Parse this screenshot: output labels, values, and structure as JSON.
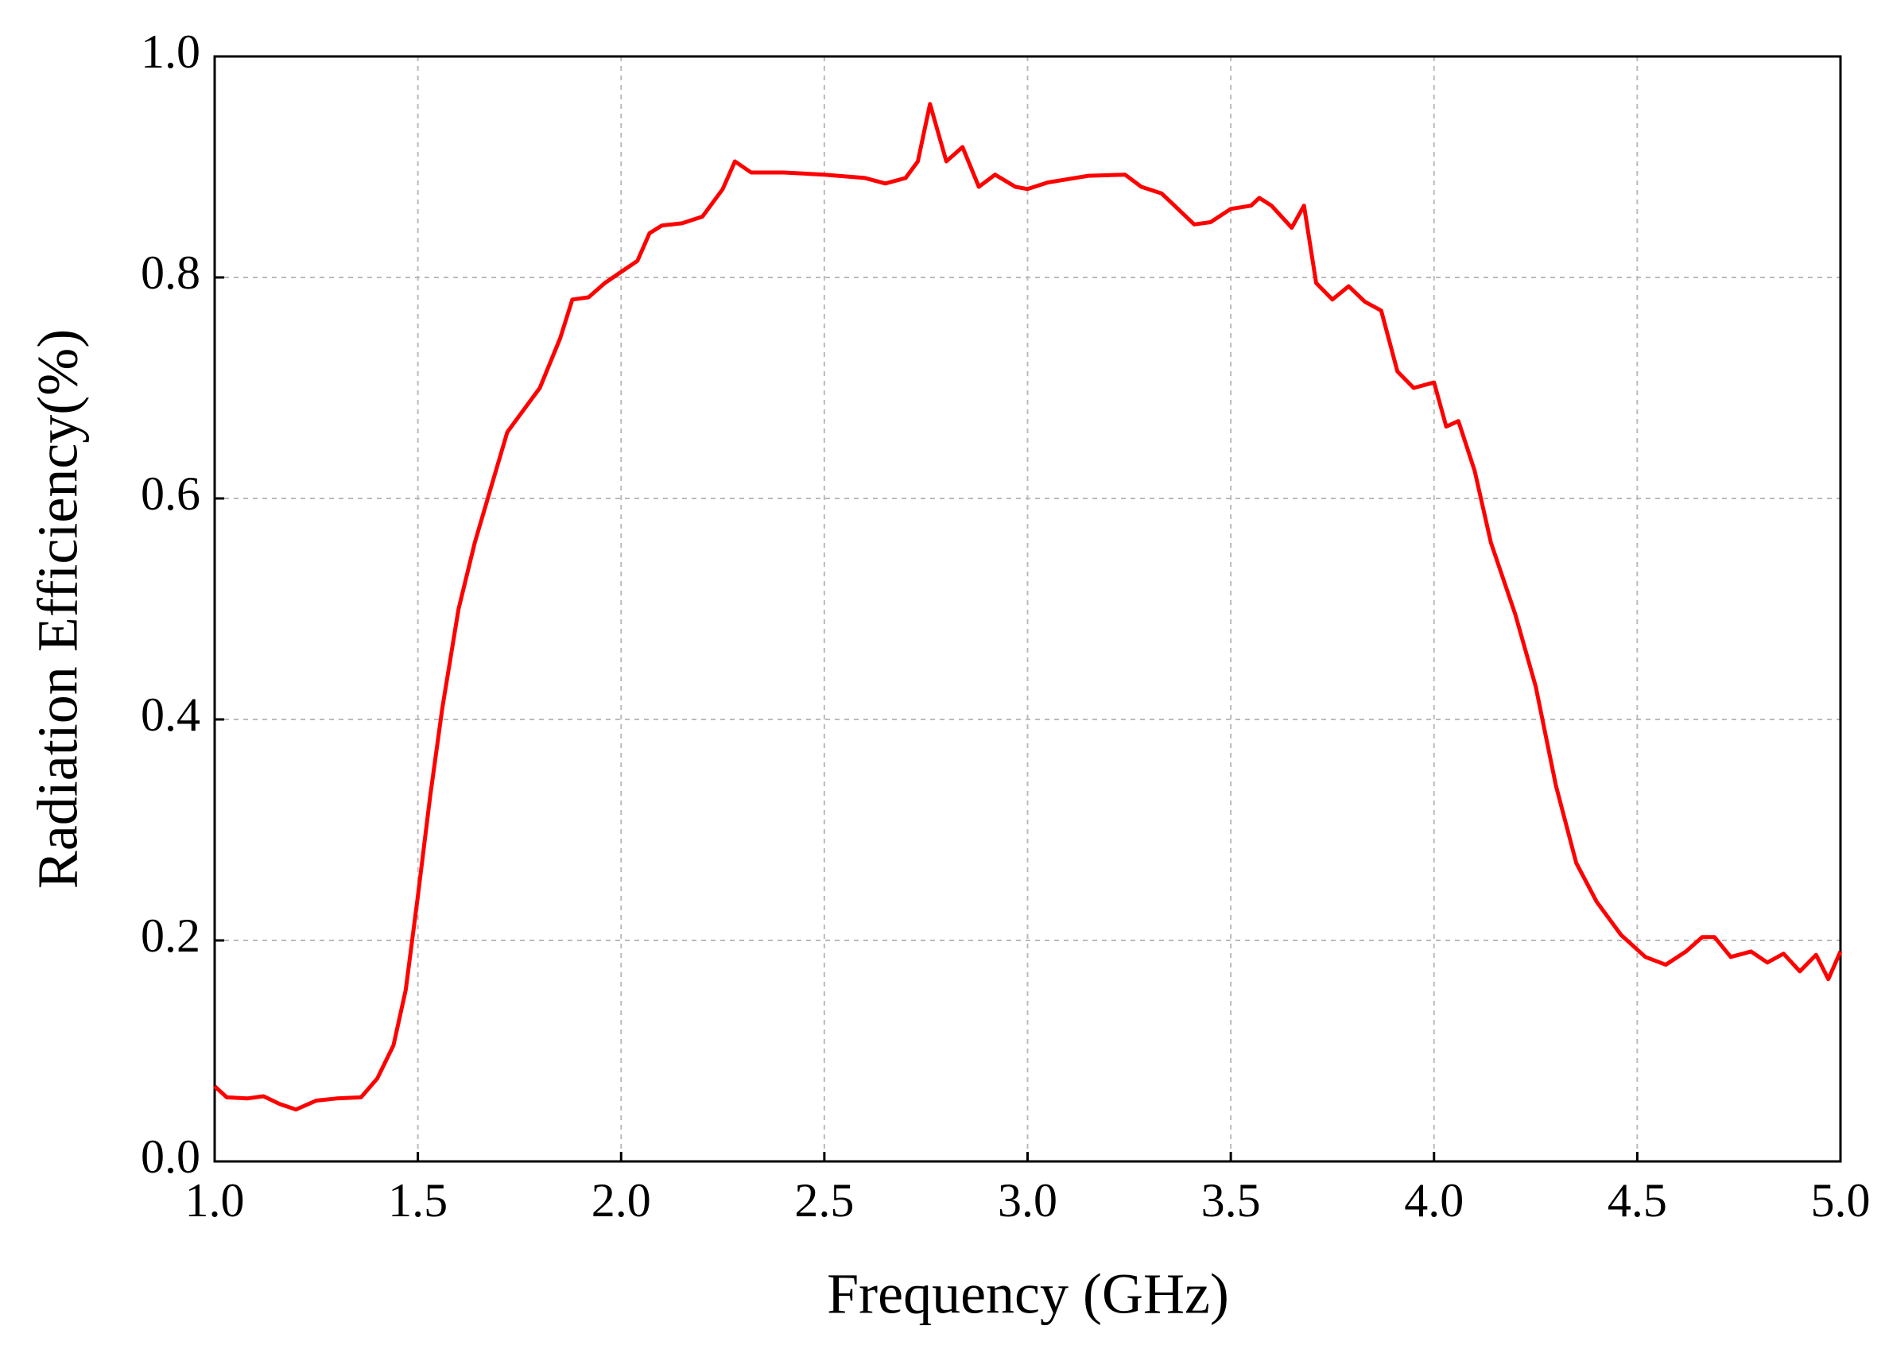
{
  "chart_data": {
    "type": "line",
    "xlabel": "Frequency (GHz)",
    "ylabel": "Radiation Efficiency(%)",
    "color": "#ff0000",
    "grid": true,
    "xlim": [
      1.0,
      5.0
    ],
    "ylim": [
      0.0,
      1.0
    ],
    "xticks": [
      {
        "value": 1.0,
        "label": "1.0"
      },
      1.5,
      {
        "value": 2.0,
        "label": "2.0"
      },
      2.5,
      {
        "value": 3.0,
        "label": "3.0"
      },
      3.5,
      {
        "value": 4.0,
        "label": "4.0"
      },
      4.5,
      {
        "value": 5.0,
        "label": "5.0"
      }
    ],
    "yticks": [
      {
        "value": 0.0,
        "label": "0.0"
      },
      0.2,
      0.4,
      0.6,
      0.8,
      {
        "value": 1.0,
        "label": "1.0"
      }
    ],
    "x": [
      1.0,
      1.03,
      1.08,
      1.12,
      1.16,
      1.2,
      1.25,
      1.3,
      1.36,
      1.4,
      1.44,
      1.47,
      1.5,
      1.53,
      1.56,
      1.6,
      1.64,
      1.68,
      1.72,
      1.76,
      1.8,
      1.85,
      1.88,
      1.92,
      1.96,
      2.0,
      2.04,
      2.07,
      2.1,
      2.15,
      2.2,
      2.25,
      2.28,
      2.32,
      2.4,
      2.5,
      2.6,
      2.65,
      2.7,
      2.73,
      2.76,
      2.8,
      2.84,
      2.88,
      2.92,
      2.97,
      3.0,
      3.05,
      3.1,
      3.15,
      3.24,
      3.28,
      3.33,
      3.37,
      3.41,
      3.45,
      3.5,
      3.55,
      3.57,
      3.6,
      3.65,
      3.68,
      3.71,
      3.75,
      3.79,
      3.83,
      3.87,
      3.91,
      3.95,
      4.0,
      4.03,
      4.06,
      4.1,
      4.14,
      4.2,
      4.25,
      4.3,
      4.35,
      4.4,
      4.46,
      4.52,
      4.57,
      4.62,
      4.66,
      4.69,
      4.73,
      4.78,
      4.82,
      4.86,
      4.9,
      4.94,
      4.97,
      5.0
    ],
    "values": [
      0.068,
      0.058,
      0.057,
      0.059,
      0.052,
      0.047,
      0.055,
      0.057,
      0.058,
      0.075,
      0.105,
      0.155,
      0.24,
      0.33,
      0.41,
      0.5,
      0.56,
      0.61,
      0.66,
      0.68,
      0.7,
      0.745,
      0.78,
      0.782,
      0.795,
      0.805,
      0.815,
      0.84,
      0.847,
      0.849,
      0.855,
      0.88,
      0.905,
      0.895,
      0.895,
      0.893,
      0.89,
      0.885,
      0.89,
      0.905,
      0.957,
      0.905,
      0.918,
      0.882,
      0.893,
      0.882,
      0.88,
      0.886,
      0.889,
      0.892,
      0.893,
      0.882,
      0.876,
      0.862,
      0.848,
      0.85,
      0.862,
      0.865,
      0.872,
      0.865,
      0.845,
      0.865,
      0.795,
      0.78,
      0.792,
      0.778,
      0.77,
      0.715,
      0.7,
      0.705,
      0.665,
      0.67,
      0.625,
      0.56,
      0.495,
      0.43,
      0.34,
      0.27,
      0.235,
      0.205,
      0.185,
      0.178,
      0.19,
      0.203,
      0.203,
      0.185,
      0.19,
      0.18,
      0.188,
      0.172,
      0.187,
      0.165,
      0.19
    ]
  }
}
